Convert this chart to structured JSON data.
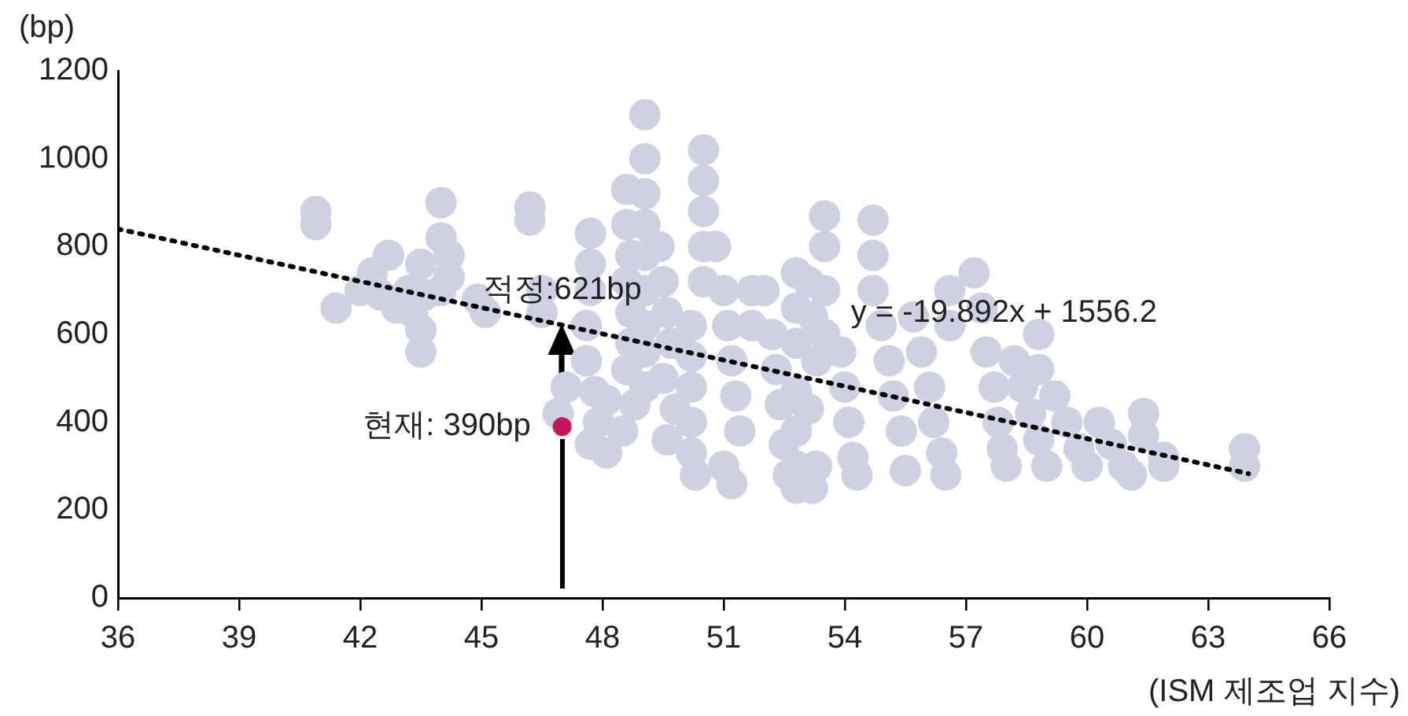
{
  "chart_data": {
    "type": "scatter",
    "ylabel": "(bp)",
    "xlabel": "(ISM 제조업 지수)",
    "xlim": [
      36,
      66
    ],
    "xticks": [
      36,
      39,
      42,
      45,
      48,
      51,
      54,
      57,
      60,
      63,
      66
    ],
    "ylim": [
      0,
      1200
    ],
    "yticks": [
      0,
      200,
      400,
      600,
      800,
      1000,
      1200
    ],
    "grid": false,
    "legend": false,
    "marker": "circle",
    "annotations": [
      {
        "text": "적정:621bp",
        "x": 47,
        "y": 621
      },
      {
        "text": "현재: 390bp",
        "x": 47,
        "y": 390
      },
      "y = -19.892x + 1556.2"
    ],
    "series": [
      {
        "type": "scatter",
        "color": "#cfd1e3",
        "x": [
          40.9,
          40.9,
          41.4,
          42,
          42.3,
          42.5,
          42.7,
          42.9,
          43.2,
          43.5,
          43.6,
          43.3,
          43.5,
          43.5,
          44,
          44,
          44,
          44.2,
          44.2,
          44.9,
          45.1,
          46.2,
          46.2,
          46.5,
          46.5,
          46.9,
          47.1,
          47.7,
          47.7,
          47.7,
          47.6,
          47.6,
          47.8,
          47.9,
          47.7,
          48.1,
          48.1,
          48.6,
          48.6,
          48.7,
          48.6,
          48.7,
          48.7,
          48.6,
          48.8,
          48.5,
          49.05,
          49.05,
          49.05,
          49.05,
          49.05,
          49.05,
          49.05,
          49.05,
          49.05,
          49.4,
          49.5,
          49.6,
          49.7,
          49.5,
          49.8,
          49.6,
          50.2,
          50.2,
          50.2,
          50.2,
          50.2,
          50.3,
          50.5,
          50.5,
          50.5,
          50.5,
          50.5,
          50.8,
          51,
          51.1,
          51.2,
          51.3,
          51.4,
          51,
          51.2,
          51.7,
          51.7,
          52,
          52.2,
          52.3,
          52.4,
          52.5,
          52.6,
          52.8,
          52.8,
          52.8,
          52.8,
          52.8,
          52.8,
          52.8,
          53.1,
          53.2,
          53.3,
          53.1,
          53.2,
          53.3,
          53.5,
          53.5,
          53.5,
          53.5,
          53.9,
          54,
          54.1,
          54.2,
          54.3,
          54.7,
          54.7,
          54.7,
          54.9,
          55.1,
          55.2,
          55.4,
          55.5,
          55.7,
          55.9,
          56.1,
          56.2,
          56.4,
          56.5,
          56.6,
          56.6,
          57.2,
          57.4,
          57.5,
          57.7,
          57.8,
          57.9,
          58,
          58.2,
          58.4,
          58.6,
          58.8,
          59,
          58.8,
          58.8,
          59.2,
          59.5,
          59.8,
          60,
          60.3,
          60.6,
          60.9,
          61.1,
          61.4,
          61.4,
          61.9,
          61.9,
          63.9,
          63.9
        ],
        "values": [
          880,
          850,
          660,
          700,
          740,
          690,
          780,
          660,
          700,
          760,
          690,
          650,
          560,
          610,
          900,
          820,
          700,
          730,
          780,
          680,
          650,
          890,
          860,
          650,
          700,
          420,
          480,
          830,
          760,
          700,
          620,
          540,
          470,
          400,
          350,
          330,
          450,
          930,
          850,
          780,
          720,
          650,
          580,
          520,
          440,
          380,
          1100,
          1000,
          920,
          850,
          780,
          700,
          620,
          560,
          480,
          800,
          720,
          650,
          580,
          500,
          430,
          360,
          620,
          550,
          480,
          400,
          330,
          280,
          1020,
          950,
          880,
          800,
          720,
          800,
          700,
          620,
          540,
          460,
          380,
          300,
          260,
          700,
          620,
          700,
          600,
          520,
          440,
          350,
          280,
          740,
          660,
          580,
          470,
          380,
          300,
          250,
          720,
          640,
          540,
          430,
          250,
          300,
          870,
          800,
          700,
          600,
          560,
          480,
          400,
          320,
          280,
          860,
          780,
          700,
          620,
          540,
          460,
          380,
          290,
          640,
          560,
          480,
          400,
          330,
          280,
          700,
          620,
          740,
          660,
          560,
          480,
          400,
          340,
          300,
          540,
          480,
          420,
          360,
          300,
          600,
          520,
          460,
          400,
          340,
          300,
          400,
          350,
          300,
          280,
          420,
          370,
          320,
          300,
          340,
          300
        ]
      },
      {
        "type": "scatter",
        "color": "#c2185b",
        "x": [
          47
        ],
        "values": [
          390
        ]
      },
      {
        "type": "line",
        "color": "#000000",
        "x": [
          36,
          64
        ],
        "values": [
          840,
          283
        ],
        "line_style": "dotted",
        "marker": "none"
      }
    ]
  }
}
